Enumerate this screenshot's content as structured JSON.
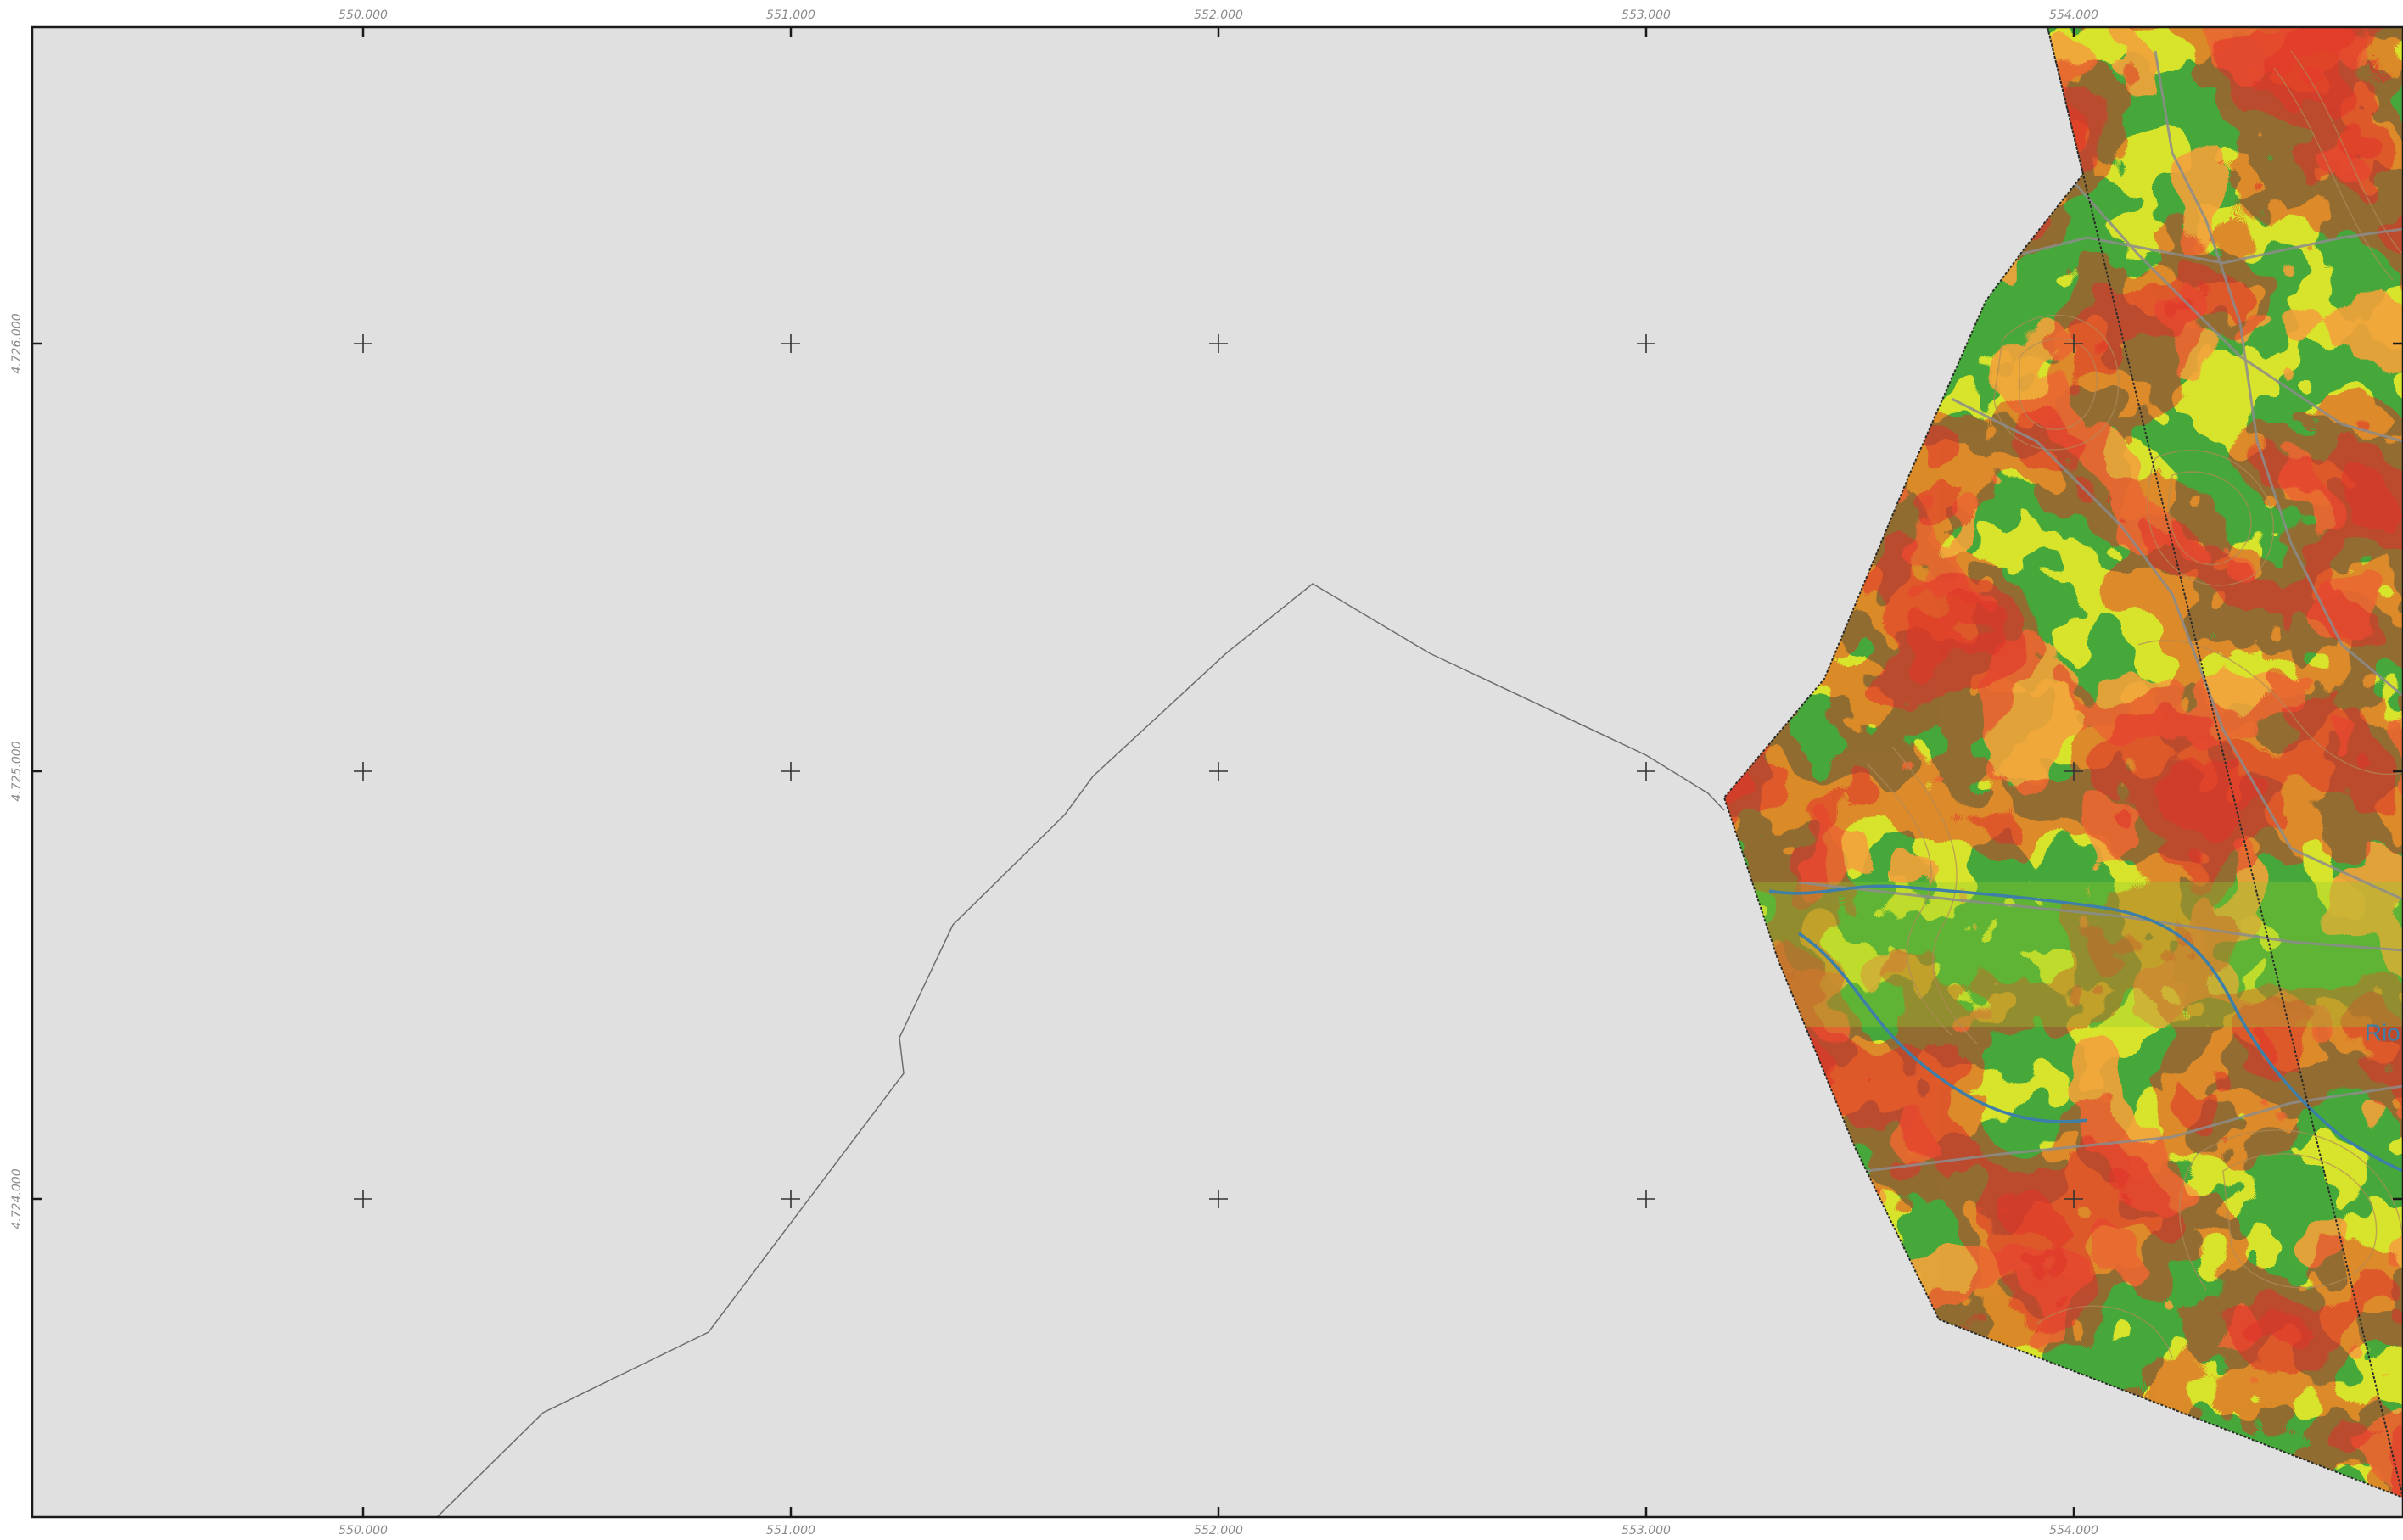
{
  "map": {
    "x_axis": {
      "ticks": [
        {
          "value": 550000,
          "label": "550.000"
        },
        {
          "value": 551000,
          "label": "551.000"
        },
        {
          "value": 552000,
          "label": "552.000"
        },
        {
          "value": 553000,
          "label": "553.000"
        },
        {
          "value": 554000,
          "label": "554.000"
        }
      ]
    },
    "y_axis": {
      "ticks": [
        {
          "value": 4726000,
          "label": "4.726.000"
        },
        {
          "value": 4725000,
          "label": "4.725.000"
        },
        {
          "value": 4724000,
          "label": "4.724.000"
        }
      ]
    },
    "place_labels": [
      {
        "text": "Rio",
        "easting": 554680,
        "northing": 4724370
      }
    ],
    "legend_colors": {
      "background_outside": "#e0e0e0",
      "low_slope": "#46a83a",
      "mid_low": "#93cc2e",
      "mid": "#f2ee2a",
      "mid_high": "#f2a23a",
      "high_slope": "#e0302a",
      "river": "#3d7fa8",
      "roads_contours": "#8c8c8c",
      "boundary_line": "#6e6e6e",
      "grid_cross": "#333333"
    }
  }
}
